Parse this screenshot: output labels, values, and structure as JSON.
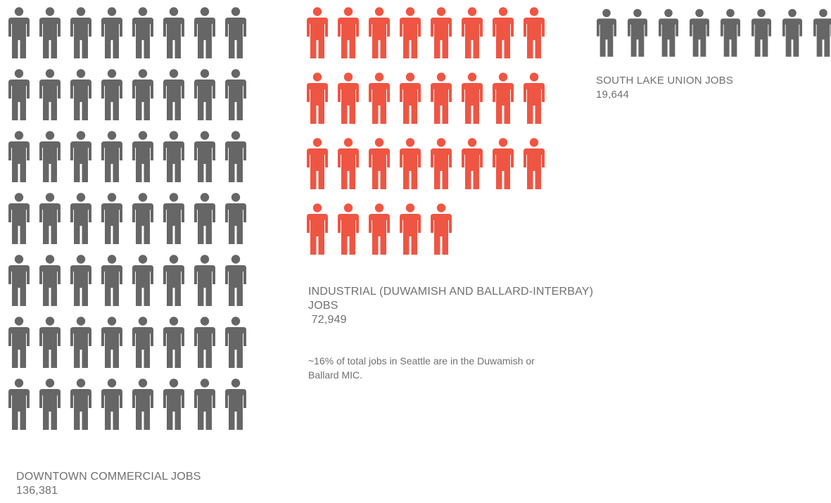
{
  "chart_data": {
    "type": "pictogram",
    "icon": "person-icon",
    "groups": [
      {
        "id": "downtown",
        "label": "DOWNTOWN COMMERCIAL JOBS",
        "value": "136,381",
        "jobs": 136381,
        "icon_count": 56,
        "columns": 8,
        "color": "#666666"
      },
      {
        "id": "industrial",
        "label": "INDUSTRIAL (DUWAMISH AND BALLARD-INTERBAY) JOBS",
        "value": " 72,949",
        "jobs": 72949,
        "icon_count": 29,
        "columns": 8,
        "color": "#EF5543",
        "note": "~16% of total jobs in Seattle are in the Duwamish or Ballard MIC."
      },
      {
        "id": "slu",
        "label": "SOUTH LAKE UNION JOBS",
        "value": "19,644",
        "jobs": 19644,
        "icon_count": 8,
        "columns": 8,
        "color": "#666666"
      }
    ]
  }
}
